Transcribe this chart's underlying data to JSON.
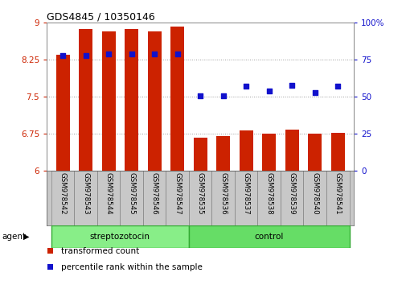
{
  "title": "GDS4845 / 10350146",
  "samples": [
    "GSM978542",
    "GSM978543",
    "GSM978544",
    "GSM978545",
    "GSM978546",
    "GSM978547",
    "GSM978535",
    "GSM978536",
    "GSM978537",
    "GSM978538",
    "GSM978539",
    "GSM978540",
    "GSM978541"
  ],
  "bar_values": [
    8.35,
    8.88,
    8.83,
    8.88,
    8.83,
    8.93,
    6.68,
    6.7,
    6.82,
    6.75,
    6.83,
    6.75,
    6.78
  ],
  "dot_values": [
    78,
    78,
    79,
    79,
    79,
    79,
    51,
    51,
    57,
    54,
    58,
    53,
    57
  ],
  "bar_color": "#CC2200",
  "dot_color": "#1111CC",
  "ylim_left": [
    6,
    9
  ],
  "ylim_right": [
    0,
    100
  ],
  "yticks_left": [
    6,
    6.75,
    7.5,
    8.25,
    9
  ],
  "yticks_right": [
    0,
    25,
    50,
    75,
    100
  ],
  "ytick_labels_left": [
    "6",
    "6.75",
    "7.5",
    "8.25",
    "9"
  ],
  "ytick_labels_right": [
    "0",
    "25",
    "50",
    "75",
    "100%"
  ],
  "group1_label": "streptozotocin",
  "group2_label": "control",
  "group1_count": 6,
  "group2_count": 7,
  "agent_label": "agent",
  "legend_bar": "transformed count",
  "legend_dot": "percentile rank within the sample",
  "grid_color": "#888888",
  "tick_area_color": "#C8C8C8",
  "group1_color": "#88EE88",
  "group2_color": "#66DD66",
  "background_color": "#FFFFFF"
}
